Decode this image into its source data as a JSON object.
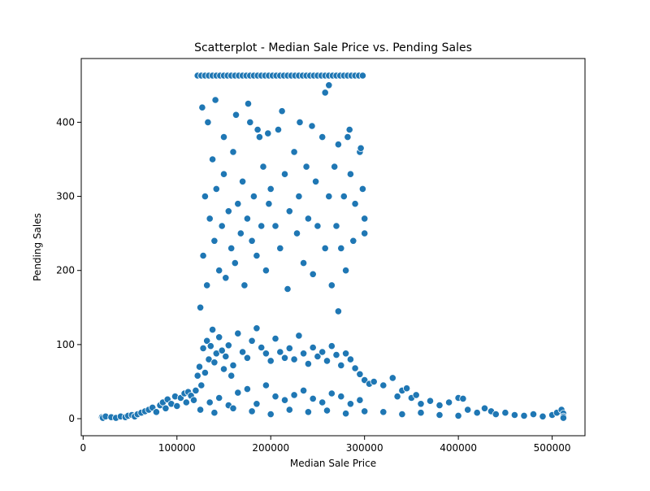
{
  "chart_data": {
    "type": "scatter",
    "title": "Scatterplot - Median Sale Price vs. Pending Sales",
    "xlabel": "Median Sale Price",
    "ylabel": "Pending Sales",
    "xlim": [
      -2000,
      535000
    ],
    "ylim": [
      -23,
      486
    ],
    "x_ticks": [
      0,
      100000,
      200000,
      300000,
      400000,
      500000
    ],
    "x_tick_labels": [
      "0",
      "100000",
      "200000",
      "300000",
      "400000",
      "500000"
    ],
    "y_ticks": [
      0,
      100,
      200,
      300,
      400
    ],
    "y_tick_labels": [
      "0",
      "100",
      "200",
      "300",
      "400"
    ],
    "grid": false,
    "legend": "none",
    "marker_color": "#1f77b4",
    "marker_edge_color": "#ffffff",
    "series": [
      {
        "values": [
          [
            20000,
            2
          ],
          [
            21000,
            1
          ],
          [
            24000,
            3
          ],
          [
            30000,
            2
          ],
          [
            35000,
            1
          ],
          [
            40000,
            3
          ],
          [
            45000,
            2
          ],
          [
            48000,
            4
          ],
          [
            52000,
            5
          ],
          [
            55000,
            3
          ],
          [
            58000,
            6
          ],
          [
            62000,
            8
          ],
          [
            66000,
            10
          ],
          [
            70000,
            12
          ],
          [
            74000,
            15
          ],
          [
            78000,
            9
          ],
          [
            82000,
            18
          ],
          [
            85000,
            22
          ],
          [
            88000,
            14
          ],
          [
            90000,
            26
          ],
          [
            94000,
            20
          ],
          [
            98000,
            30
          ],
          [
            100000,
            17
          ],
          [
            104000,
            28
          ],
          [
            108000,
            34
          ],
          [
            110000,
            22
          ],
          [
            112000,
            36
          ],
          [
            115000,
            31
          ],
          [
            118000,
            25
          ],
          [
            120000,
            38
          ],
          [
            122000,
            58
          ],
          [
            124000,
            70
          ],
          [
            126000,
            45
          ],
          [
            128000,
            95
          ],
          [
            130000,
            62
          ],
          [
            132000,
            105
          ],
          [
            134000,
            80
          ],
          [
            136000,
            98
          ],
          [
            138000,
            120
          ],
          [
            140000,
            76
          ],
          [
            142000,
            88
          ],
          [
            145000,
            110
          ],
          [
            148000,
            92
          ],
          [
            150000,
            67
          ],
          [
            152000,
            84
          ],
          [
            155000,
            99
          ],
          [
            158000,
            58
          ],
          [
            160000,
            72
          ],
          [
            165000,
            115
          ],
          [
            170000,
            90
          ],
          [
            175000,
            82
          ],
          [
            180000,
            105
          ],
          [
            185000,
            122
          ],
          [
            190000,
            96
          ],
          [
            195000,
            88
          ],
          [
            200000,
            78
          ],
          [
            205000,
            108
          ],
          [
            210000,
            90
          ],
          [
            215000,
            82
          ],
          [
            220000,
            95
          ],
          [
            225000,
            80
          ],
          [
            230000,
            112
          ],
          [
            235000,
            88
          ],
          [
            240000,
            74
          ],
          [
            245000,
            96
          ],
          [
            250000,
            84
          ],
          [
            255000,
            90
          ],
          [
            260000,
            78
          ],
          [
            265000,
            98
          ],
          [
            270000,
            86
          ],
          [
            275000,
            72
          ],
          [
            280000,
            88
          ],
          [
            285000,
            80
          ],
          [
            290000,
            68
          ],
          [
            295000,
            60
          ],
          [
            300000,
            52
          ],
          [
            305000,
            47
          ],
          [
            310000,
            50
          ],
          [
            320000,
            45
          ],
          [
            330000,
            55
          ],
          [
            335000,
            30
          ],
          [
            340000,
            38
          ],
          [
            345000,
            41
          ],
          [
            350000,
            28
          ],
          [
            355000,
            32
          ],
          [
            360000,
            20
          ],
          [
            370000,
            24
          ],
          [
            380000,
            18
          ],
          [
            390000,
            22
          ],
          [
            400000,
            28
          ],
          [
            405000,
            27
          ],
          [
            410000,
            12
          ],
          [
            420000,
            8
          ],
          [
            428000,
            14
          ],
          [
            435000,
            10
          ],
          [
            440000,
            6
          ],
          [
            450000,
            8
          ],
          [
            460000,
            5
          ],
          [
            470000,
            4
          ],
          [
            480000,
            6
          ],
          [
            490000,
            3
          ],
          [
            500000,
            5
          ],
          [
            505000,
            8
          ],
          [
            510000,
            12
          ],
          [
            512000,
            7
          ],
          [
            512000,
            3
          ],
          [
            512000,
            1
          ],
          [
            135000,
            22
          ],
          [
            145000,
            28
          ],
          [
            155000,
            18
          ],
          [
            165000,
            35
          ],
          [
            175000,
            40
          ],
          [
            185000,
            20
          ],
          [
            195000,
            45
          ],
          [
            205000,
            30
          ],
          [
            215000,
            25
          ],
          [
            225000,
            32
          ],
          [
            235000,
            38
          ],
          [
            245000,
            27
          ],
          [
            255000,
            22
          ],
          [
            265000,
            34
          ],
          [
            275000,
            30
          ],
          [
            285000,
            20
          ],
          [
            295000,
            25
          ],
          [
            125000,
            12
          ],
          [
            140000,
            8
          ],
          [
            160000,
            14
          ],
          [
            180000,
            10
          ],
          [
            200000,
            6
          ],
          [
            220000,
            12
          ],
          [
            240000,
            9
          ],
          [
            260000,
            11
          ],
          [
            280000,
            7
          ],
          [
            300000,
            10
          ],
          [
            320000,
            9
          ],
          [
            340000,
            6
          ],
          [
            360000,
            8
          ],
          [
            380000,
            5
          ],
          [
            400000,
            4
          ],
          [
            125000,
            150
          ],
          [
            128000,
            220
          ],
          [
            130000,
            300
          ],
          [
            132000,
            180
          ],
          [
            135000,
            270
          ],
          [
            138000,
            350
          ],
          [
            140000,
            240
          ],
          [
            142000,
            310
          ],
          [
            145000,
            200
          ],
          [
            148000,
            260
          ],
          [
            150000,
            330
          ],
          [
            152000,
            190
          ],
          [
            155000,
            280
          ],
          [
            158000,
            230
          ],
          [
            160000,
            360
          ],
          [
            162000,
            210
          ],
          [
            165000,
            290
          ],
          [
            168000,
            250
          ],
          [
            170000,
            320
          ],
          [
            172000,
            180
          ],
          [
            175000,
            270
          ],
          [
            178000,
            400
          ],
          [
            180000,
            240
          ],
          [
            182000,
            300
          ],
          [
            185000,
            220
          ],
          [
            188000,
            380
          ],
          [
            190000,
            260
          ],
          [
            192000,
            340
          ],
          [
            195000,
            200
          ],
          [
            198000,
            290
          ],
          [
            200000,
            310
          ],
          [
            205000,
            260
          ],
          [
            208000,
            390
          ],
          [
            210000,
            230
          ],
          [
            215000,
            330
          ],
          [
            218000,
            175
          ],
          [
            220000,
            280
          ],
          [
            225000,
            360
          ],
          [
            228000,
            250
          ],
          [
            230000,
            300
          ],
          [
            235000,
            210
          ],
          [
            238000,
            340
          ],
          [
            240000,
            270
          ],
          [
            245000,
            195
          ],
          [
            248000,
            320
          ],
          [
            250000,
            260
          ],
          [
            255000,
            380
          ],
          [
            258000,
            230
          ],
          [
            262000,
            300
          ],
          [
            265000,
            180
          ],
          [
            268000,
            340
          ],
          [
            270000,
            260
          ],
          [
            272000,
            145
          ],
          [
            275000,
            230
          ],
          [
            278000,
            300
          ],
          [
            280000,
            200
          ],
          [
            282000,
            380
          ],
          [
            285000,
            330
          ],
          [
            288000,
            240
          ],
          [
            290000,
            290
          ],
          [
            295000,
            360
          ],
          [
            298000,
            310
          ],
          [
            300000,
            250
          ],
          [
            300000,
            270
          ],
          [
            127000,
            420
          ],
          [
            133000,
            400
          ],
          [
            141000,
            430
          ],
          [
            150000,
            380
          ],
          [
            163000,
            410
          ],
          [
            176000,
            425
          ],
          [
            186000,
            390
          ],
          [
            197000,
            385
          ],
          [
            212000,
            415
          ],
          [
            231000,
            400
          ],
          [
            244000,
            395
          ],
          [
            258000,
            440
          ],
          [
            262000,
            450
          ],
          [
            272000,
            370
          ],
          [
            284000,
            390
          ],
          [
            296000,
            365
          ],
          [
            122000,
            463
          ],
          [
            126000,
            463
          ],
          [
            130000,
            463
          ],
          [
            134000,
            463
          ],
          [
            138000,
            463
          ],
          [
            142000,
            463
          ],
          [
            146000,
            463
          ],
          [
            150000,
            463
          ],
          [
            154000,
            463
          ],
          [
            158000,
            463
          ],
          [
            162000,
            463
          ],
          [
            166000,
            463
          ],
          [
            170000,
            463
          ],
          [
            174000,
            463
          ],
          [
            178000,
            463
          ],
          [
            182000,
            463
          ],
          [
            186000,
            463
          ],
          [
            190000,
            463
          ],
          [
            194000,
            463
          ],
          [
            198000,
            463
          ],
          [
            202000,
            463
          ],
          [
            206000,
            463
          ],
          [
            210000,
            463
          ],
          [
            214000,
            463
          ],
          [
            218000,
            463
          ],
          [
            222000,
            463
          ],
          [
            226000,
            463
          ],
          [
            230000,
            463
          ],
          [
            234000,
            463
          ],
          [
            238000,
            463
          ],
          [
            242000,
            463
          ],
          [
            246000,
            463
          ],
          [
            250000,
            463
          ],
          [
            254000,
            463
          ],
          [
            258000,
            463
          ],
          [
            262000,
            463
          ],
          [
            266000,
            463
          ],
          [
            270000,
            463
          ],
          [
            274000,
            463
          ],
          [
            278000,
            463
          ],
          [
            282000,
            463
          ],
          [
            286000,
            463
          ],
          [
            290000,
            463
          ],
          [
            294000,
            463
          ],
          [
            298000,
            463
          ]
        ]
      }
    ]
  }
}
